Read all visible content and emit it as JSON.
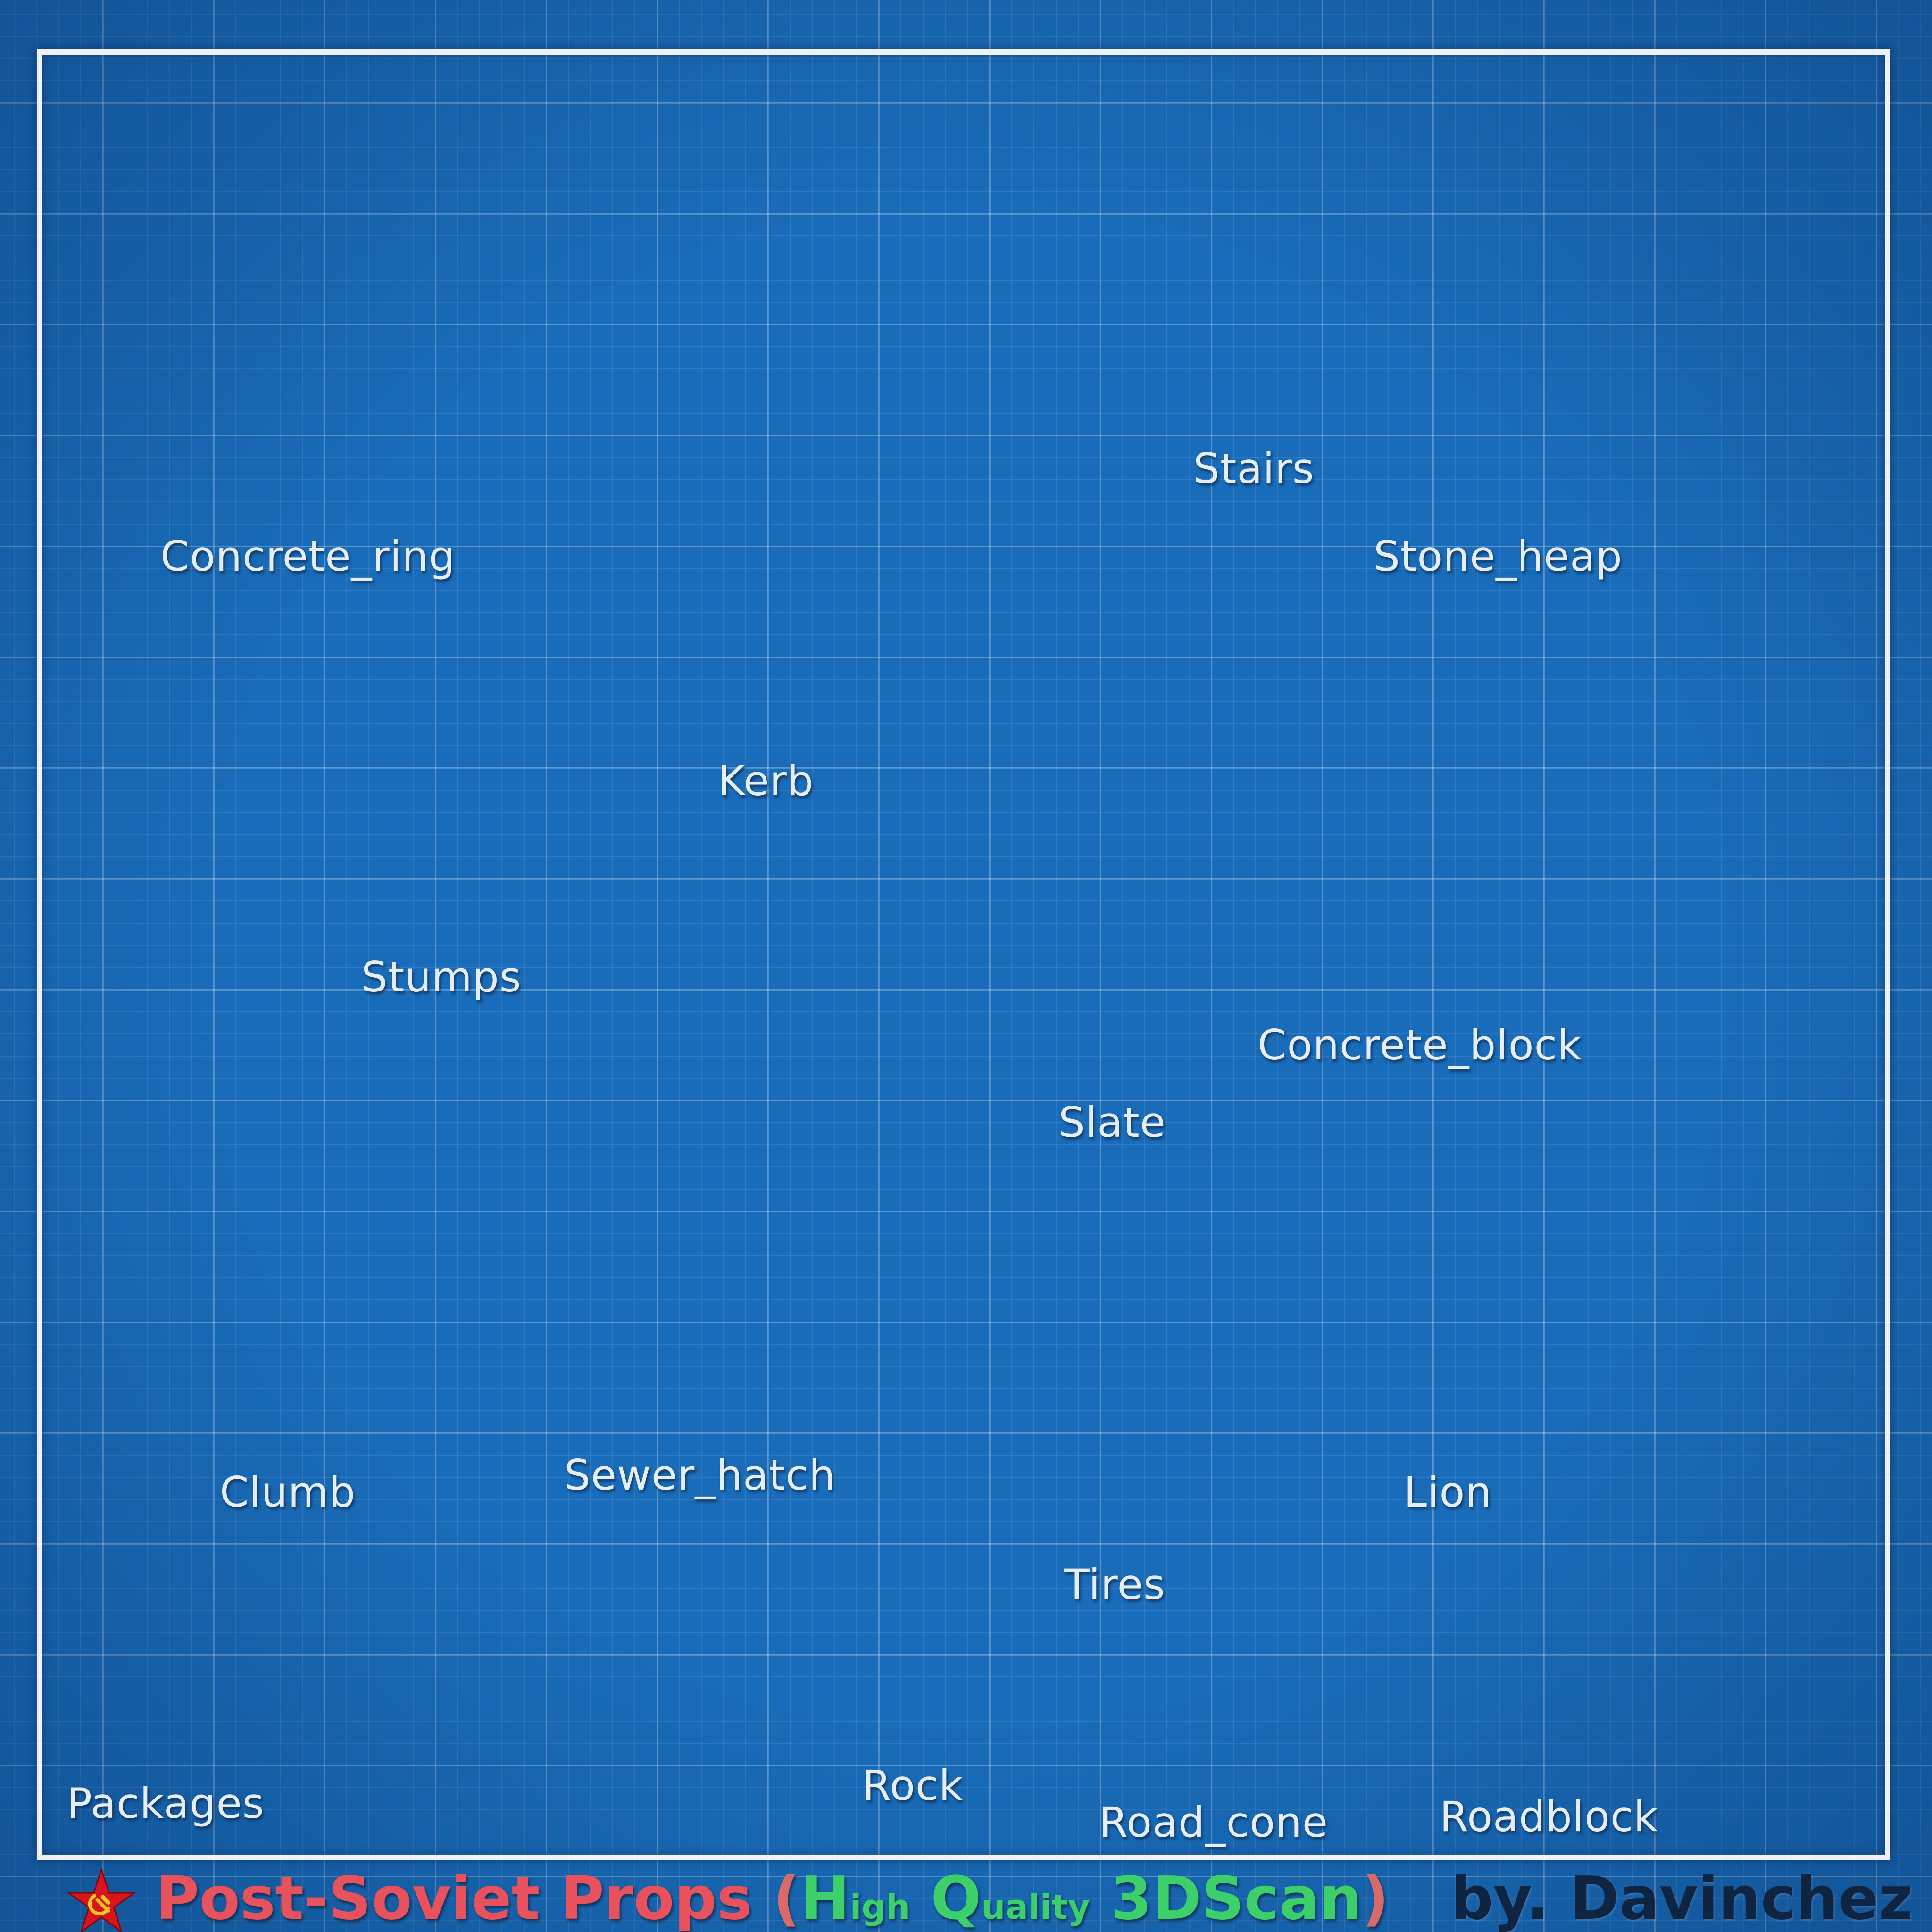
{
  "labels": {
    "stairs": "Stairs",
    "concrete_ring": "Concrete_ring",
    "stone_heap": "Stone_heap",
    "kerb": "Kerb",
    "stumps": "Stumps",
    "concrete_block": "Concrete_block",
    "slate": "Slate",
    "clumb": "Clumb",
    "sewer_hatch": "Sewer_hatch",
    "lion": "Lion",
    "tires": "Tires",
    "rock": "Rock",
    "packages": "Packages",
    "road_cone": "Road_cone",
    "roadblock": "Roadblock"
  },
  "footer": {
    "title_main": "Post-Soviet Props",
    "paren_open": " (",
    "h_cap": "H",
    "h_rest": "igh",
    "q_cap": " Q",
    "q_rest": "uality",
    "scan": " 3DScan",
    "paren_close": ")",
    "author": "by. Davinchez",
    "star_icon": "soviet-star-hammer-sickle-icon"
  },
  "colors": {
    "background": "#196cb9",
    "grid_line": "#ffffff",
    "frame": "#eef2f6",
    "label_text": "#e6edf5",
    "title_red": "#e8525c",
    "title_green": "#3ccf6a",
    "author_text": "#0e2440"
  }
}
